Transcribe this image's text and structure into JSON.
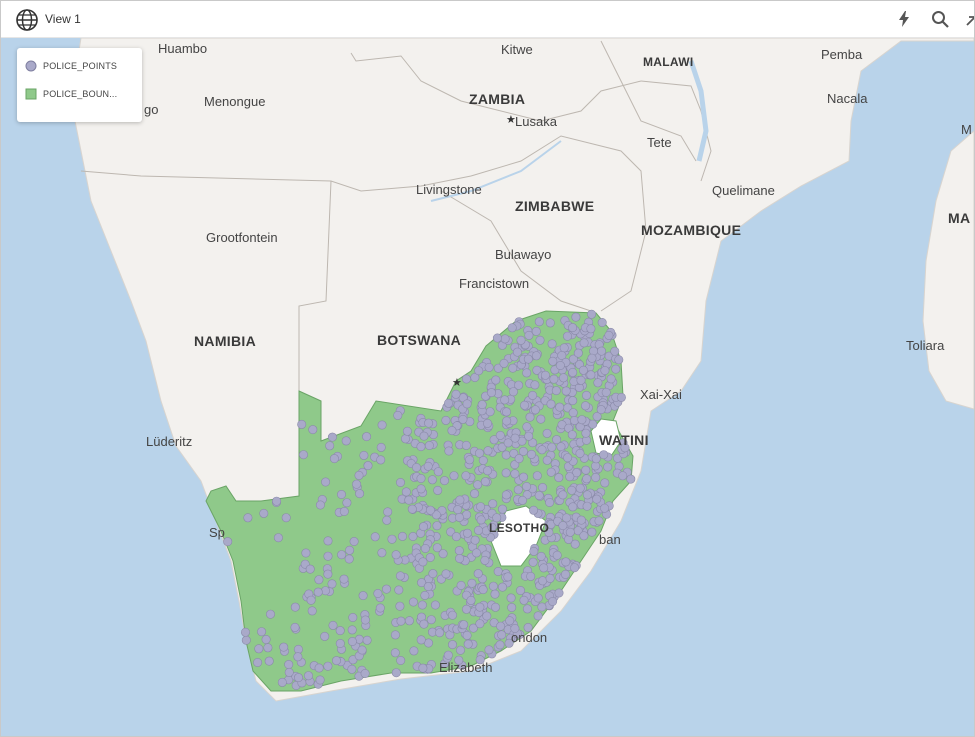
{
  "window": {
    "title": "View 1"
  },
  "toolbar": {
    "icons": [
      "lightning-icon",
      "search-icon",
      "collapse-icon"
    ]
  },
  "legend": {
    "items": [
      {
        "label": "POLICE_POINTS",
        "symbol": "circle",
        "color": "#a9a9c9"
      },
      {
        "label": "POLICE_BOUN...",
        "symbol": "square",
        "color": "#8fc98a"
      }
    ]
  },
  "map": {
    "country_labels": [
      "ZAMBIA",
      "MALAWI",
      "ZIMBABWE",
      "MOZAMBIQUE",
      "NAMIBIA",
      "BOTSWANA",
      "LESOTHO",
      "WATINI",
      "MA"
    ],
    "city_labels": [
      "Huambo",
      "Kitwe",
      "Pemba",
      "Menongue",
      "go",
      "Lusaka",
      "Nacala",
      "Tete",
      "M",
      "Livingstone",
      "Quelimane",
      "Grootfontein",
      "Bulawayo",
      "Francistown",
      "Toliara",
      "Xai-Xai",
      "Lüderitz",
      "ban",
      "ondon",
      "Elizabeth",
      "Sp"
    ],
    "colors": {
      "ocean": "#b9d3ea",
      "land": "#f3f1ee",
      "boundary_fill": "#8fc98a",
      "points": "#a9a9c9"
    }
  }
}
